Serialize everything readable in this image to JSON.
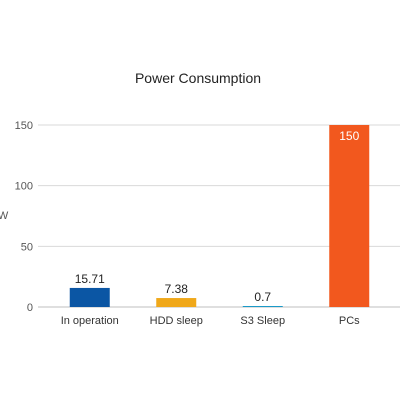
{
  "chart_data": {
    "type": "bar",
    "title": "Power Consumption",
    "xlabel": "",
    "ylabel": "W",
    "categories": [
      "In operation",
      "HDD sleep",
      "S3 Sleep",
      "PCs"
    ],
    "values": [
      15.71,
      7.38,
      0.7,
      150
    ],
    "value_labels": [
      "15.71",
      "7.38",
      "0.7",
      "150"
    ],
    "colors": [
      "#0b56a4",
      "#f0a81a",
      "#1b9ac8",
      "#f2581e"
    ],
    "ylim": [
      0,
      150
    ],
    "yticks": [
      0,
      50,
      100,
      150
    ],
    "grid": true,
    "legend": "none"
  }
}
